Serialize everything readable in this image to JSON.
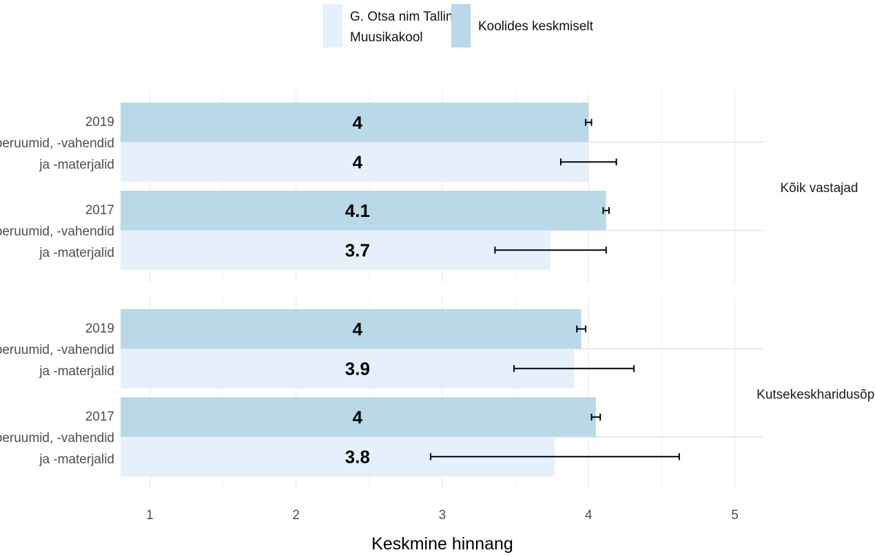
{
  "chart_data": {
    "type": "bar",
    "orientation": "horizontal",
    "xlabel": "Keskmine hinnang",
    "xlim": [
      0.8,
      5.2
    ],
    "xticks": [
      1,
      2,
      3,
      4,
      5
    ],
    "grid": true,
    "legend_position": "top",
    "series": [
      {
        "name": "G. Otsa nim Tallinna Muusikakool",
        "color": "#e6f0fa"
      },
      {
        "name": "Koolides keskmiselt",
        "color": "#bad9e8"
      }
    ],
    "facets": [
      {
        "label": "Kõik vastajad",
        "groups": [
          {
            "year": "2019",
            "label_lines": [
              "Õpperuumid, -vahendid",
              "ja -materjalid"
            ],
            "koolides": {
              "value": 4.0,
              "label": "4",
              "err": [
                3.98,
                4.02
              ]
            },
            "kool": {
              "value": 4.0,
              "label": "4",
              "err": [
                3.81,
                4.19
              ]
            }
          },
          {
            "year": "2017",
            "label_lines": [
              "Õpperuumid, -vahendid",
              "ja -materjalid"
            ],
            "koolides": {
              "value": 4.12,
              "label": "4.1",
              "err": [
                4.1,
                4.14
              ]
            },
            "kool": {
              "value": 3.74,
              "label": "3.7",
              "err": [
                3.36,
                4.12
              ]
            }
          }
        ]
      },
      {
        "label": "Kutsekeskharidusõpe",
        "groups": [
          {
            "year": "2019",
            "label_lines": [
              "Õpperuumid, -vahendid",
              "ja -materjalid"
            ],
            "koolides": {
              "value": 3.95,
              "label": "4",
              "err": [
                3.92,
                3.98
              ]
            },
            "kool": {
              "value": 3.9,
              "label": "3.9",
              "err": [
                3.49,
                4.31
              ]
            }
          },
          {
            "year": "2017",
            "label_lines": [
              "Õpperuumid, -vahendid",
              "ja -materjalid"
            ],
            "koolides": {
              "value": 4.05,
              "label": "4",
              "err": [
                4.02,
                4.08
              ]
            },
            "kool": {
              "value": 3.77,
              "label": "3.8",
              "err": [
                2.92,
                4.62
              ]
            }
          }
        ]
      }
    ]
  }
}
